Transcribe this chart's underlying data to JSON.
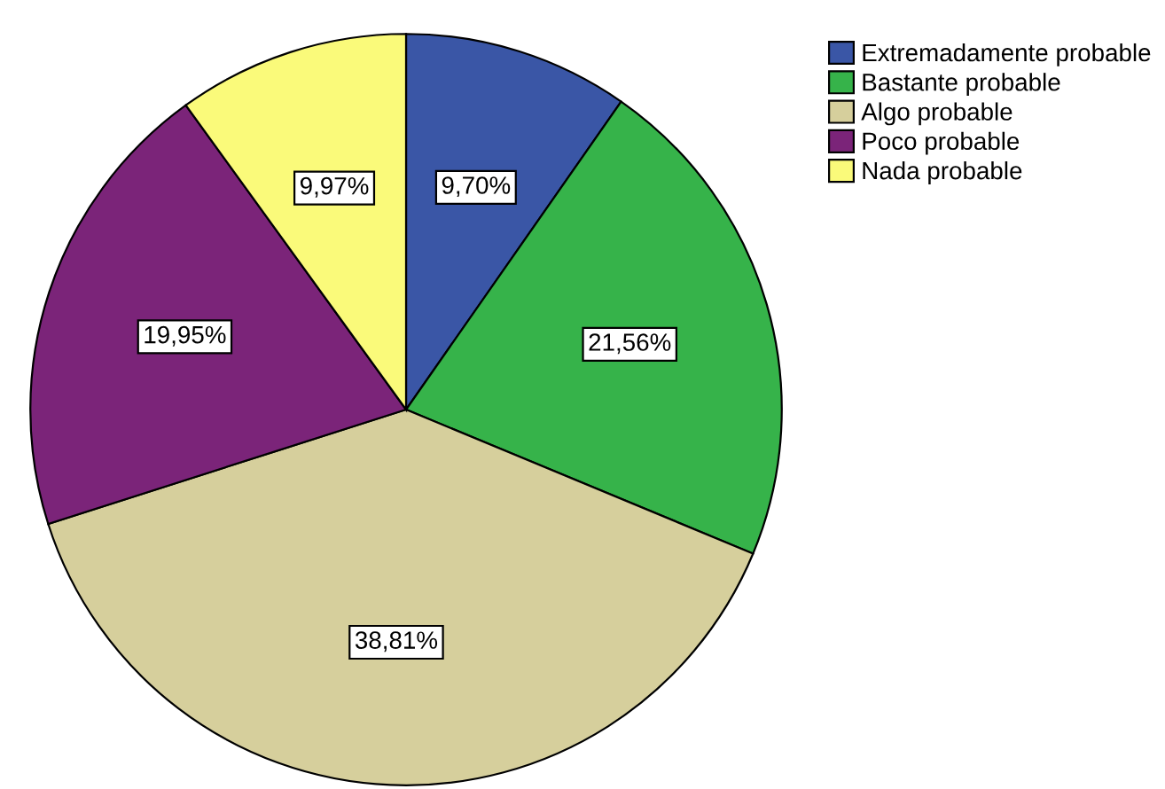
{
  "chart_data": {
    "type": "pie",
    "categories": [
      "Extremadamente probable",
      "Bastante probable",
      "Algo probable",
      "Poco probable",
      "Nada probable"
    ],
    "values": [
      9.7,
      21.56,
      38.81,
      19.95,
      9.97
    ],
    "colors": [
      "#3a56a6",
      "#36b34a",
      "#d6cf9c",
      "#7b2479",
      "#fafa7a"
    ],
    "value_labels": [
      "9,70%",
      "21,56%",
      "38,81%",
      "19,95%",
      "9,97%"
    ],
    "legend": "top right"
  }
}
